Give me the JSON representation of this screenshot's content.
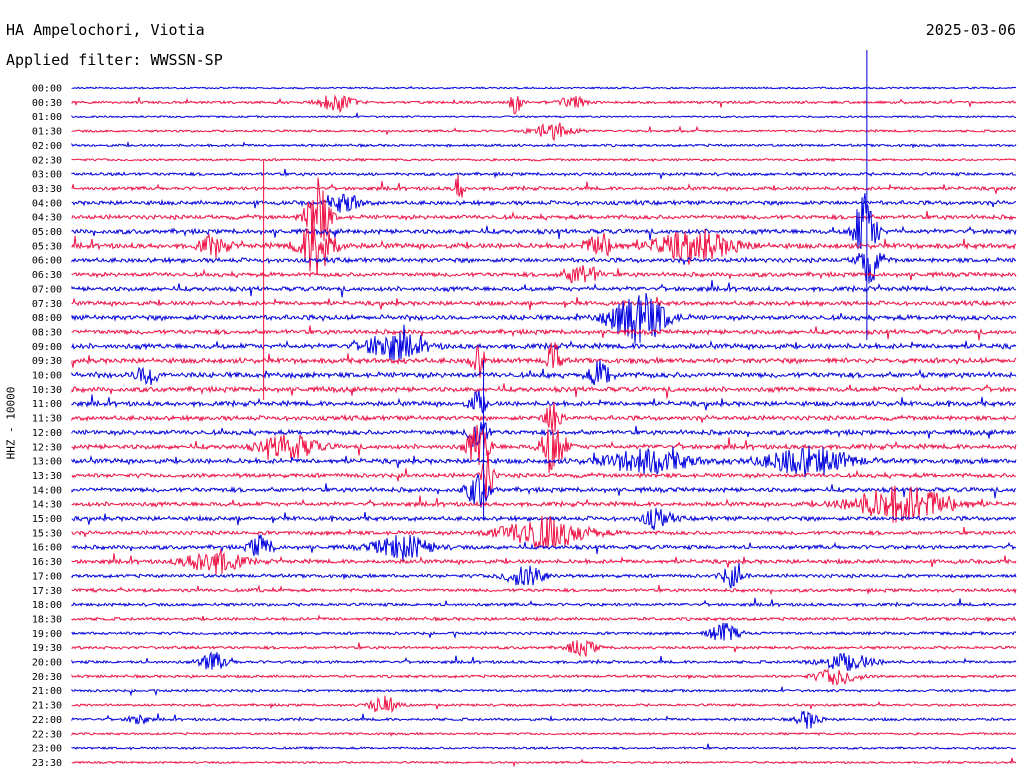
{
  "header": {
    "station": "HA Ampelochori, Viotia",
    "filter": "Applied filter: WWSSN-SP",
    "date": "2025-03-06"
  },
  "chart_data": {
    "type": "line",
    "title": "HA Ampelochori, Viotia",
    "subtitle": "Applied filter: WWSSN-SP",
    "xlabel": "",
    "ylabel": "HHZ - 10000",
    "date": "2025-03-06",
    "row_labels": [
      "00:00",
      "00:30",
      "01:00",
      "01:30",
      "02:00",
      "02:30",
      "03:00",
      "03:30",
      "04:00",
      "04:30",
      "05:00",
      "05:30",
      "06:00",
      "06:30",
      "07:00",
      "07:30",
      "08:00",
      "08:30",
      "09:00",
      "09:30",
      "10:00",
      "10:30",
      "11:00",
      "11:30",
      "12:00",
      "12:30",
      "13:00",
      "13:30",
      "14:00",
      "14:30",
      "15:00",
      "15:30",
      "16:00",
      "16:30",
      "17:00",
      "17:30",
      "18:00",
      "18:30",
      "19:00",
      "19:30",
      "20:00",
      "20:30",
      "21:00",
      "21:30",
      "22:00",
      "22:30",
      "23:00",
      "23:30"
    ],
    "series": [
      {
        "color": "#0000dd"
      },
      {
        "color": "#ee1144"
      }
    ],
    "activity": [
      0.12,
      0.3,
      0.12,
      0.25,
      0.3,
      0.25,
      0.45,
      0.55,
      0.7,
      0.75,
      0.85,
      0.95,
      0.8,
      0.75,
      0.8,
      0.75,
      0.9,
      0.8,
      0.95,
      0.95,
      1.0,
      0.9,
      0.85,
      0.8,
      0.85,
      0.85,
      0.9,
      0.75,
      0.8,
      0.75,
      0.75,
      0.65,
      0.7,
      0.7,
      0.55,
      0.5,
      0.45,
      0.45,
      0.4,
      0.4,
      0.4,
      0.35,
      0.3,
      0.3,
      0.35,
      0.22,
      0.22,
      0.18
    ],
    "events": [
      {
        "row": 1,
        "x": 0.28,
        "amp": 9,
        "w": 0.012
      },
      {
        "row": 1,
        "x": 0.47,
        "amp": 14,
        "w": 0.004
      },
      {
        "row": 1,
        "x": 0.53,
        "amp": 6,
        "w": 0.01
      },
      {
        "row": 3,
        "x": 0.51,
        "amp": 8,
        "w": 0.015
      },
      {
        "row": 7,
        "x": 0.41,
        "amp": 16,
        "w": 0.003
      },
      {
        "row": 8,
        "x": 0.29,
        "amp": 10,
        "w": 0.01
      },
      {
        "row": 9,
        "x": 0.26,
        "amp": 40,
        "w": 0.008
      },
      {
        "row": 10,
        "x": 0.84,
        "amp": 38,
        "w": 0.008
      },
      {
        "row": 11,
        "x": 0.26,
        "amp": 30,
        "w": 0.012
      },
      {
        "row": 11,
        "x": 0.66,
        "amp": 14,
        "w": 0.03
      },
      {
        "row": 11,
        "x": 0.15,
        "amp": 10,
        "w": 0.01
      },
      {
        "row": 11,
        "x": 0.56,
        "amp": 12,
        "w": 0.01
      },
      {
        "row": 12,
        "x": 0.845,
        "amp": 22,
        "w": 0.008
      },
      {
        "row": 13,
        "x": 0.54,
        "amp": 10,
        "w": 0.012
      },
      {
        "row": 16,
        "x": 0.6,
        "amp": 26,
        "w": 0.02
      },
      {
        "row": 18,
        "x": 0.34,
        "amp": 14,
        "w": 0.02
      },
      {
        "row": 19,
        "x": 0.43,
        "amp": 16,
        "w": 0.005
      },
      {
        "row": 19,
        "x": 0.51,
        "amp": 18,
        "w": 0.005
      },
      {
        "row": 20,
        "x": 0.56,
        "amp": 14,
        "w": 0.008
      },
      {
        "row": 20,
        "x": 0.08,
        "amp": 10,
        "w": 0.008
      },
      {
        "row": 22,
        "x": 0.43,
        "amp": 12,
        "w": 0.006
      },
      {
        "row": 23,
        "x": 0.51,
        "amp": 18,
        "w": 0.006
      },
      {
        "row": 24,
        "x": 0.43,
        "amp": 24,
        "w": 0.006
      },
      {
        "row": 25,
        "x": 0.51,
        "amp": 30,
        "w": 0.008
      },
      {
        "row": 25,
        "x": 0.43,
        "amp": 24,
        "w": 0.008
      },
      {
        "row": 25,
        "x": 0.23,
        "amp": 12,
        "w": 0.02
      },
      {
        "row": 26,
        "x": 0.61,
        "amp": 12,
        "w": 0.03
      },
      {
        "row": 26,
        "x": 0.78,
        "amp": 14,
        "w": 0.03
      },
      {
        "row": 27,
        "x": 0.44,
        "amp": 28,
        "w": 0.004
      },
      {
        "row": 28,
        "x": 0.43,
        "amp": 18,
        "w": 0.008
      },
      {
        "row": 29,
        "x": 0.88,
        "amp": 18,
        "w": 0.035
      },
      {
        "row": 30,
        "x": 0.62,
        "amp": 10,
        "w": 0.01
      },
      {
        "row": 31,
        "x": 0.5,
        "amp": 16,
        "w": 0.03
      },
      {
        "row": 32,
        "x": 0.35,
        "amp": 12,
        "w": 0.02
      },
      {
        "row": 32,
        "x": 0.2,
        "amp": 12,
        "w": 0.008
      },
      {
        "row": 33,
        "x": 0.15,
        "amp": 12,
        "w": 0.02
      },
      {
        "row": 34,
        "x": 0.48,
        "amp": 10,
        "w": 0.015
      },
      {
        "row": 34,
        "x": 0.7,
        "amp": 10,
        "w": 0.008
      },
      {
        "row": 38,
        "x": 0.69,
        "amp": 10,
        "w": 0.01
      },
      {
        "row": 39,
        "x": 0.54,
        "amp": 8,
        "w": 0.01
      },
      {
        "row": 40,
        "x": 0.15,
        "amp": 9,
        "w": 0.01
      },
      {
        "row": 40,
        "x": 0.82,
        "amp": 8,
        "w": 0.02
      },
      {
        "row": 41,
        "x": 0.81,
        "amp": 8,
        "w": 0.015
      },
      {
        "row": 43,
        "x": 0.33,
        "amp": 9,
        "w": 0.01
      },
      {
        "row": 44,
        "x": 0.78,
        "amp": 9,
        "w": 0.008
      },
      {
        "row": 44,
        "x": 0.07,
        "amp": 7,
        "w": 0.006
      }
    ],
    "grid": false,
    "legend": "none"
  }
}
